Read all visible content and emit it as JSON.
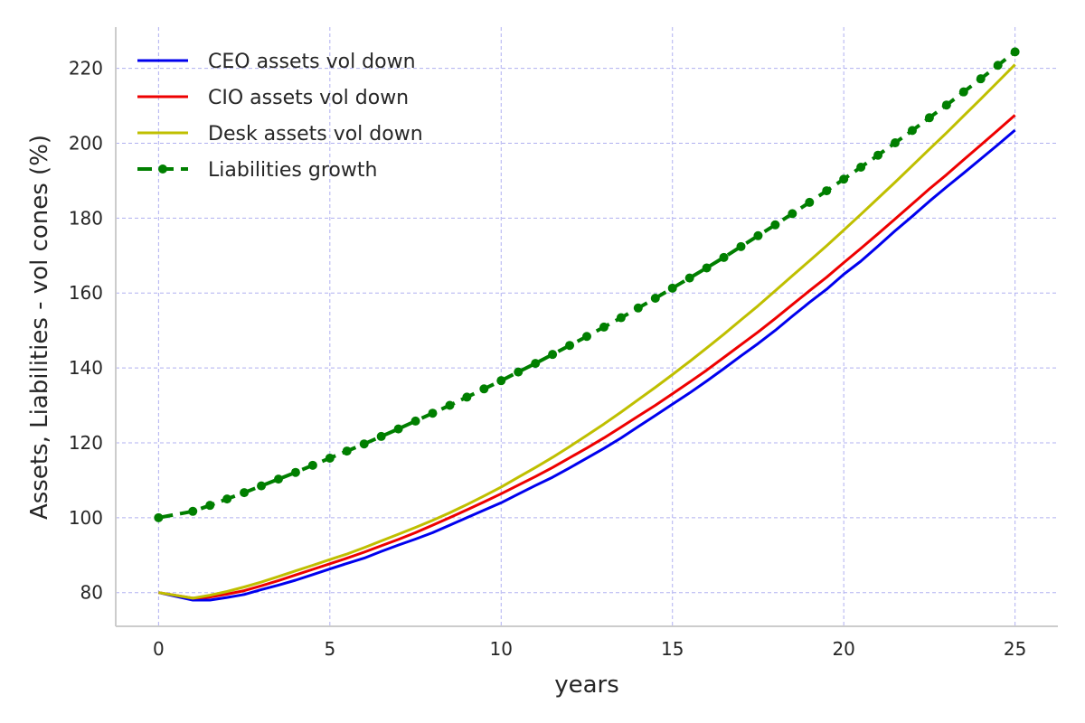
{
  "chart_data": {
    "type": "line",
    "title": "",
    "xlabel": "years",
    "ylabel": "Assets, Liabilities - vol cones (%)",
    "xlim": [
      -1.25,
      26.25
    ],
    "ylim": [
      71,
      231
    ],
    "xticks": [
      0,
      5,
      10,
      15,
      20,
      25
    ],
    "yticks": [
      80,
      100,
      120,
      140,
      160,
      180,
      200,
      220
    ],
    "grid": true,
    "legend_position": "top-left",
    "series": [
      {
        "name": "CEO assets vol down",
        "color": "#0000ee",
        "style": "solid",
        "x": [
          0,
          1,
          1.5,
          2,
          2.5,
          3,
          3.5,
          4,
          4.5,
          5,
          5.5,
          6,
          6.5,
          7,
          7.5,
          8,
          8.5,
          9,
          9.5,
          10,
          10.5,
          11,
          11.5,
          12,
          12.5,
          13,
          13.5,
          14,
          14.5,
          15,
          15.5,
          16,
          16.5,
          17,
          17.5,
          18,
          18.5,
          19,
          19.5,
          20,
          20.5,
          21,
          21.5,
          22,
          22.5,
          23,
          23.5,
          24,
          24.5,
          25
        ],
        "y": [
          80,
          78,
          78,
          78.7,
          79.5,
          80.8,
          82,
          83.3,
          84.8,
          86.3,
          87.8,
          89.2,
          91,
          92.7,
          94.3,
          96,
          98,
          100,
          102,
          104,
          106.3,
          108.6,
          110.8,
          113.3,
          115.9,
          118.5,
          121.3,
          124.3,
          127.3,
          130.3,
          133.3,
          136.5,
          139.8,
          143.2,
          146.5,
          150,
          153.8,
          157.5,
          161,
          165,
          168.5,
          172.5,
          176.6,
          180.5,
          184.5,
          188.3,
          192,
          195.8,
          199.6,
          203.5
        ]
      },
      {
        "name": "CIO assets vol down",
        "color": "#ee0000",
        "style": "solid",
        "x": [
          0,
          1,
          1.5,
          2,
          2.5,
          3,
          3.5,
          4,
          4.5,
          5,
          5.5,
          6,
          6.5,
          7,
          7.5,
          8,
          8.5,
          9,
          9.5,
          10,
          10.5,
          11,
          11.5,
          12,
          12.5,
          13,
          13.5,
          14,
          14.5,
          15,
          15.5,
          16,
          16.5,
          17,
          17.5,
          18,
          18.5,
          19,
          19.5,
          20,
          20.5,
          21,
          21.5,
          22,
          22.5,
          23,
          23.5,
          24,
          24.5,
          25
        ],
        "y": [
          80,
          78.5,
          78.8,
          79.6,
          80.5,
          81.8,
          83.2,
          84.7,
          86.2,
          87.7,
          89.2,
          90.8,
          92.5,
          94.2,
          96,
          98,
          100,
          102.1,
          104.2,
          106.4,
          108.7,
          111,
          113.4,
          116,
          118.6,
          121.3,
          124.2,
          127.1,
          130,
          133.1,
          136.2,
          139.4,
          142.8,
          146.2,
          149.6,
          153.2,
          156.9,
          160.6,
          164.2,
          168.1,
          171.9,
          175.8,
          179.8,
          183.8,
          187.8,
          191.6,
          195.6,
          199.5,
          203.5,
          207.5
        ]
      },
      {
        "name": "Desk assets vol down",
        "color": "#bfbf00",
        "style": "solid",
        "x": [
          0,
          1,
          1.5,
          2,
          2.5,
          3,
          3.5,
          4,
          4.5,
          5,
          5.5,
          6,
          6.5,
          7,
          7.5,
          8,
          8.5,
          9,
          9.5,
          10,
          10.5,
          11,
          11.5,
          12,
          12.5,
          13,
          13.5,
          14,
          14.5,
          15,
          15.5,
          16,
          16.5,
          17,
          17.5,
          18,
          18.5,
          19,
          19.5,
          20,
          20.5,
          21,
          21.5,
          22,
          22.5,
          23,
          23.5,
          24,
          24.5,
          25
        ],
        "y": [
          80,
          78.5,
          79.3,
          80.3,
          81.5,
          82.8,
          84.3,
          85.8,
          87.3,
          88.8,
          90.3,
          92,
          93.8,
          95.6,
          97.4,
          99.3,
          101.3,
          103.5,
          105.8,
          108.2,
          110.8,
          113.4,
          116.1,
          119,
          122,
          125,
          128.2,
          131.5,
          134.8,
          138.2,
          141.7,
          145.3,
          149,
          152.8,
          156.6,
          160.6,
          164.6,
          168.6,
          172.6,
          176.8,
          181,
          185.3,
          189.6,
          194,
          198.4,
          202.8,
          207.3,
          211.8,
          216.4,
          221
        ]
      },
      {
        "name": "Liabilities growth",
        "color": "#007f00",
        "style": "dashed-markers",
        "x": [
          0,
          1,
          1.5,
          2,
          2.5,
          3,
          3.5,
          4,
          4.5,
          5,
          5.5,
          6,
          6.5,
          7,
          7.5,
          8,
          8.5,
          9,
          9.5,
          10,
          10.5,
          11,
          11.5,
          12,
          12.5,
          13,
          13.5,
          14,
          14.5,
          15,
          15.5,
          16,
          16.5,
          17,
          17.5,
          18,
          18.5,
          19,
          19.5,
          20,
          20.5,
          21,
          21.5,
          22,
          22.5,
          23,
          23.5,
          24,
          24.5,
          25
        ],
        "y": [
          100,
          101.7,
          103.3,
          105,
          106.7,
          108.5,
          110.3,
          112.1,
          114,
          115.9,
          117.8,
          119.7,
          121.7,
          123.7,
          125.8,
          127.9,
          130,
          132.2,
          134.4,
          136.6,
          138.9,
          141.2,
          143.6,
          146,
          148.4,
          150.9,
          153.4,
          156,
          158.6,
          161.3,
          164,
          166.7,
          169.5,
          172.4,
          175.3,
          178.2,
          181.2,
          184.2,
          187.3,
          190.4,
          193.6,
          196.8,
          200.1,
          203.4,
          206.8,
          210.2,
          213.7,
          217.2,
          220.8,
          224.4
        ]
      }
    ]
  }
}
